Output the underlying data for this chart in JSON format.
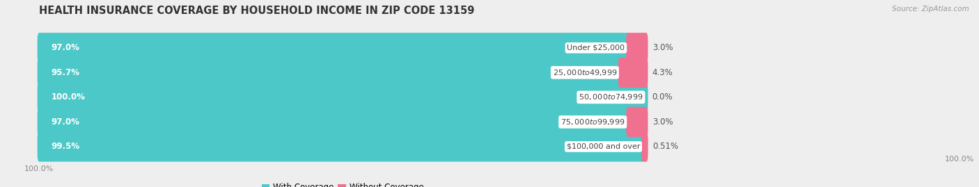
{
  "title": "HEALTH INSURANCE COVERAGE BY HOUSEHOLD INCOME IN ZIP CODE 13159",
  "source": "Source: ZipAtlas.com",
  "categories": [
    "Under $25,000",
    "$25,000 to $49,999",
    "$50,000 to $74,999",
    "$75,000 to $99,999",
    "$100,000 and over"
  ],
  "with_coverage": [
    97.0,
    95.7,
    100.0,
    97.0,
    99.5
  ],
  "without_coverage": [
    3.0,
    4.3,
    0.0,
    3.0,
    0.51
  ],
  "with_coverage_labels": [
    "97.0%",
    "95.7%",
    "100.0%",
    "97.0%",
    "99.5%"
  ],
  "without_coverage_labels": [
    "3.0%",
    "4.3%",
    "0.0%",
    "3.0%",
    "0.51%"
  ],
  "color_with": "#4DC8C8",
  "color_without": "#F07090",
  "bg_color": "#eeeeee",
  "bar_bg_color": "#f5f5f5",
  "title_fontsize": 10.5,
  "label_fontsize": 8.5,
  "axis_label_fontsize": 8,
  "legend_fontsize": 8.5,
  "figsize": [
    14.06,
    2.69
  ],
  "dpi": 100
}
